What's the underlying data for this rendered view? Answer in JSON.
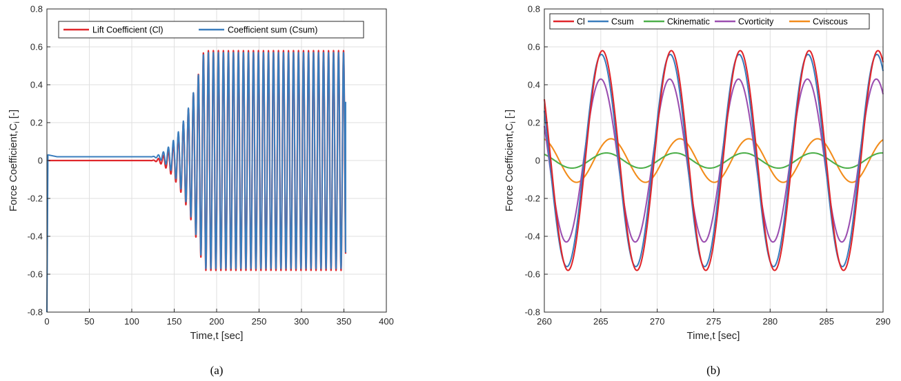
{
  "figure": {
    "captions": [
      "(a)",
      "(b)"
    ]
  },
  "chart_data": [
    {
      "type": "line",
      "xlabel": "Time,t [sec]",
      "ylabel": "Force Coefficient,C_i [-]",
      "xlim": [
        0,
        400
      ],
      "ylim": [
        -0.8,
        0.8
      ],
      "xticks": [
        0,
        50,
        100,
        150,
        200,
        250,
        300,
        350,
        400
      ],
      "yticks": [
        -0.8,
        -0.6,
        -0.4,
        -0.2,
        0,
        0.2,
        0.4,
        0.6,
        0.8
      ],
      "ytick_labels": [
        "-0.8",
        "-0.6",
        "-0.4",
        "-0.2",
        "0",
        "0.2",
        "0.4",
        "0.6",
        "0.8"
      ],
      "grid": true,
      "legend": "top-left",
      "series": [
        {
          "name": "Lift Coefficient (Cl)",
          "color": "#e0262b",
          "description": "zero until ~120 s, growing oscillation from ~135 s, saturated amplitude 0.58 from ~185 s to 352 s",
          "baseline": 0.0,
          "saturated_amplitude": 0.58,
          "period": 5.9
        },
        {
          "name": "Coefficient sum (Csum)",
          "color": "#3a7dbd",
          "description": "starts at -0.8 at t=0, jumps to 0.03, settles near 0.02, then oscillates with amplitude ~0.57 matching Cl",
          "baseline": 0.02,
          "saturated_amplitude": 0.57,
          "period": 5.9
        }
      ]
    },
    {
      "type": "line",
      "xlabel": "Time,t [sec]",
      "ylabel": "Force Coefficient,C_i [-]",
      "xlim": [
        260,
        290
      ],
      "ylim": [
        -0.8,
        0.8
      ],
      "xticks": [
        260,
        265,
        270,
        275,
        280,
        285,
        290
      ],
      "yticks": [
        -0.8,
        -0.6,
        -0.4,
        -0.2,
        0,
        0.2,
        0.4,
        0.6,
        0.8
      ],
      "ytick_labels": [
        "-0.8",
        "-0.6",
        "-0.4",
        "-0.2",
        "0",
        "0.2",
        "0.4",
        "0.6",
        "0.8"
      ],
      "grid": true,
      "legend": "top",
      "period": 6.1,
      "series": [
        {
          "name": "Cl",
          "color": "#e0262b",
          "amplitude": 0.58,
          "peak_time": 265.15
        },
        {
          "name": "Csum",
          "color": "#3a7dbd",
          "amplitude": 0.56,
          "peak_time": 265.05
        },
        {
          "name": "Ckinematic",
          "color": "#4daf4a",
          "amplitude": 0.04,
          "peak_time": 265.5
        },
        {
          "name": "Cvorticity",
          "color": "#9b4fb0",
          "amplitude": 0.43,
          "peak_time": 265.0
        },
        {
          "name": "Cviscous",
          "color": "#f28c1b",
          "amplitude": 0.115,
          "peak_time": 265.9
        }
      ]
    }
  ]
}
